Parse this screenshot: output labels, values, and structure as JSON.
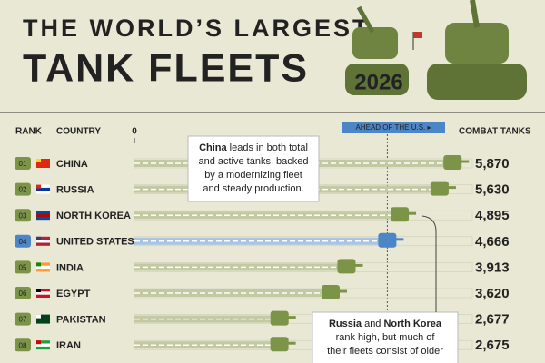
{
  "chart_data": {
    "type": "bar",
    "orientation": "horizontal",
    "title_line1": "THE WORLD’S LARGEST",
    "title_line2": "TANK FLEETS",
    "year": "2026",
    "rank_header": "RANK",
    "country_header": "COUNTRY",
    "value_header": "COMBAT TANKS",
    "ranks": [
      "01",
      "02",
      "03",
      "04",
      "05",
      "06",
      "07",
      "08"
    ],
    "categories": [
      "CHINA",
      "RUSSIA",
      "NORTH KOREA",
      "UNITED STATES",
      "INDIA",
      "EGYPT",
      "PAKISTAN",
      "IRAN"
    ],
    "values": [
      5870,
      5630,
      4895,
      4666,
      3913,
      3620,
      2677,
      2675
    ],
    "value_labels": [
      "5,870",
      "5,630",
      "4,895",
      "4,666",
      "3,913",
      "3,620",
      "2,677",
      "2,675"
    ],
    "colors": [
      "#7b9448",
      "#7b9448",
      "#7b9448",
      "#4d86c6",
      "#7b9448",
      "#7b9448",
      "#7b9448",
      "#7b9448"
    ],
    "xlim": [
      0,
      6000
    ],
    "xticks": [
      0
    ],
    "reference_value": 4666,
    "reference_label": "AHEAD OF THE U.S. ▸",
    "annotations": [
      {
        "lines": [
          [
            {
              "text": "China",
              "bold": true
            },
            {
              "text": " leads in both total"
            }
          ],
          [
            {
              "text": "and active tanks, backed"
            }
          ],
          [
            {
              "text": "by a modernizing fleet"
            }
          ],
          [
            {
              "text": "and steady production."
            }
          ]
        ]
      },
      {
        "lines": [
          [
            {
              "text": "Russia",
              "bold": true
            },
            {
              "text": " and "
            },
            {
              "text": "North Korea",
              "bold": true
            }
          ],
          [
            {
              "text": "rank high, but much of"
            }
          ],
          [
            {
              "text": "their fleets consist of older"
            }
          ]
        ]
      }
    ]
  }
}
